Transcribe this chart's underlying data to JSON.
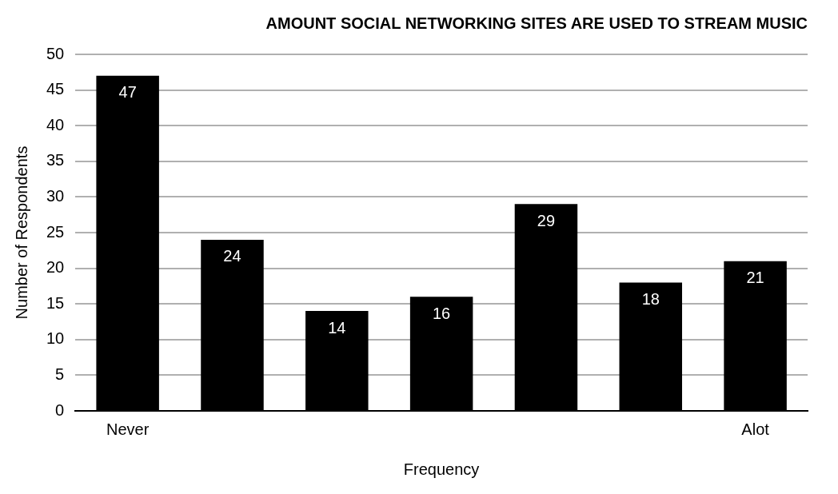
{
  "chart_data": {
    "type": "bar",
    "title": "AMOUNT SOCIAL NETWORKING SITES ARE USED TO STREAM MUSIC",
    "xlabel": "Frequency",
    "ylabel": "Number of Respondents",
    "categories": [
      "Never",
      null,
      null,
      null,
      null,
      null,
      "Alot"
    ],
    "values": [
      47,
      24,
      14,
      16,
      29,
      18,
      21
    ],
    "color": "#000000",
    "ylim": [
      0,
      50
    ],
    "yticks": [
      0,
      5,
      10,
      15,
      20,
      25,
      30,
      35,
      40,
      45,
      50
    ],
    "grid": "y",
    "legend": false,
    "data_labels": true
  }
}
